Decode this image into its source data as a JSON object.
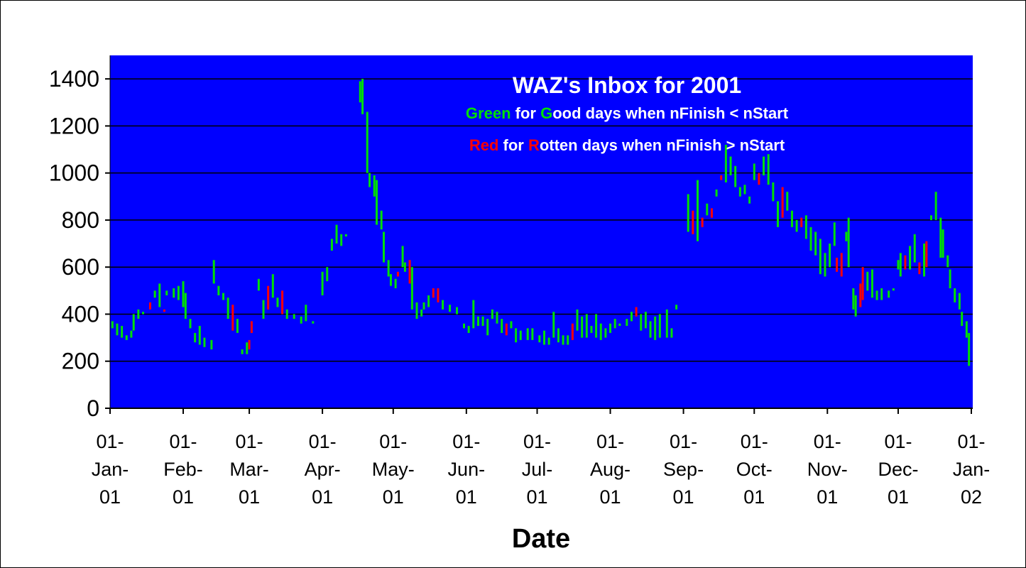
{
  "chart_data": {
    "type": "bar",
    "subtype": "high-low daily range",
    "title": "WAZ's Inbox for 2001",
    "subtitle_lines": [
      [
        {
          "t": "Green",
          "c": "G"
        },
        {
          "t": " for ",
          "c": "W"
        },
        {
          "t": "G",
          "c": "G"
        },
        {
          "t": "ood days when nFinish < nStart",
          "c": "W"
        }
      ],
      [
        {
          "t": "Red",
          "c": "R"
        },
        {
          "t": " for ",
          "c": "W"
        },
        {
          "t": "R",
          "c": "R"
        },
        {
          "t": "otten days when nFinish > nStart",
          "c": "W"
        }
      ]
    ],
    "xlabel": "Date",
    "ylabel": "",
    "ylim": [
      0,
      1500
    ],
    "yticks": [
      "0",
      "200",
      "400",
      "600",
      "800",
      "1000",
      "1200",
      "1400"
    ],
    "xlim": [
      "2001-01-01",
      "2002-01-01"
    ],
    "xticks": [
      {
        "date": "2001-01-01",
        "label": [
          "01-",
          "Jan-",
          "01"
        ]
      },
      {
        "date": "2001-02-01",
        "label": [
          "01-",
          "Feb-",
          "01"
        ]
      },
      {
        "date": "2001-03-01",
        "label": [
          "01-",
          "Mar-",
          "01"
        ]
      },
      {
        "date": "2001-04-01",
        "label": [
          "01-",
          "Apr-",
          "01"
        ]
      },
      {
        "date": "2001-05-01",
        "label": [
          "01-",
          "May-",
          "01"
        ]
      },
      {
        "date": "2001-06-01",
        "label": [
          "01-",
          "Jun-",
          "01"
        ]
      },
      {
        "date": "2001-07-01",
        "label": [
          "01-",
          "Jul-",
          "01"
        ]
      },
      {
        "date": "2001-08-01",
        "label": [
          "01-",
          "Aug-",
          "01"
        ]
      },
      {
        "date": "2001-09-01",
        "label": [
          "01-",
          "Sep-",
          "01"
        ]
      },
      {
        "date": "2001-10-01",
        "label": [
          "01-",
          "Oct-",
          "01"
        ]
      },
      {
        "date": "2001-11-01",
        "label": [
          "01-",
          "Nov-",
          "01"
        ]
      },
      {
        "date": "2001-12-01",
        "label": [
          "01-",
          "Dec-",
          "01"
        ]
      },
      {
        "date": "2002-01-01",
        "label": [
          "01-",
          "Jan-",
          "02"
        ]
      }
    ],
    "grid": true,
    "colors": {
      "G": "#00e000",
      "R": "#ff0000",
      "W": "#ffffff",
      "background": "#0000ff",
      "grid": "#000000"
    },
    "bars_format": [
      "date",
      "high",
      "low",
      "color"
    ],
    "bars": [
      [
        "2001-01-02",
        370,
        340,
        "G"
      ],
      [
        "2001-01-04",
        360,
        310,
        "G"
      ],
      [
        "2001-01-06",
        350,
        300,
        "G"
      ],
      [
        "2001-01-08",
        310,
        290,
        "G"
      ],
      [
        "2001-01-10",
        330,
        300,
        "G"
      ],
      [
        "2001-01-11",
        400,
        330,
        "G"
      ],
      [
        "2001-01-13",
        420,
        380,
        "G"
      ],
      [
        "2001-01-15",
        410,
        400,
        "G"
      ],
      [
        "2001-01-18",
        450,
        420,
        "R"
      ],
      [
        "2001-01-20",
        500,
        470,
        "G"
      ],
      [
        "2001-01-22",
        530,
        430,
        "G"
      ],
      [
        "2001-01-24",
        420,
        410,
        "R"
      ],
      [
        "2001-01-25",
        500,
        480,
        "G"
      ],
      [
        "2001-01-28",
        510,
        470,
        "G"
      ],
      [
        "2001-01-30",
        520,
        460,
        "G"
      ],
      [
        "2001-02-01",
        540,
        430,
        "G"
      ],
      [
        "2001-02-02",
        490,
        380,
        "G"
      ],
      [
        "2001-02-04",
        380,
        340,
        "G"
      ],
      [
        "2001-02-06",
        320,
        280,
        "G"
      ],
      [
        "2001-02-08",
        350,
        270,
        "G"
      ],
      [
        "2001-02-10",
        300,
        260,
        "G"
      ],
      [
        "2001-02-13",
        290,
        250,
        "G"
      ],
      [
        "2001-02-14",
        630,
        530,
        "G"
      ],
      [
        "2001-02-16",
        520,
        480,
        "G"
      ],
      [
        "2001-02-18",
        490,
        460,
        "G"
      ],
      [
        "2001-02-20",
        470,
        380,
        "G"
      ],
      [
        "2001-02-22",
        440,
        330,
        "R"
      ],
      [
        "2001-02-24",
        380,
        320,
        "G"
      ],
      [
        "2001-02-26",
        250,
        230,
        "G"
      ],
      [
        "2001-02-28",
        280,
        230,
        "G"
      ],
      [
        "2001-03-01",
        290,
        250,
        "R"
      ],
      [
        "2001-03-02",
        370,
        320,
        "R"
      ],
      [
        "2001-03-05",
        550,
        500,
        "G"
      ],
      [
        "2001-03-07",
        460,
        380,
        "G"
      ],
      [
        "2001-03-09",
        520,
        420,
        "R"
      ],
      [
        "2001-03-11",
        570,
        470,
        "G"
      ],
      [
        "2001-03-13",
        470,
        430,
        "G"
      ],
      [
        "2001-03-15",
        500,
        400,
        "R"
      ],
      [
        "2001-03-17",
        420,
        380,
        "G"
      ],
      [
        "2001-03-20",
        400,
        380,
        "G"
      ],
      [
        "2001-03-23",
        390,
        360,
        "G"
      ],
      [
        "2001-03-25",
        440,
        370,
        "G"
      ],
      [
        "2001-03-28",
        370,
        360,
        "G"
      ],
      [
        "2001-04-01",
        580,
        480,
        "G"
      ],
      [
        "2001-04-03",
        600,
        540,
        "G"
      ],
      [
        "2001-04-05",
        720,
        670,
        "G"
      ],
      [
        "2001-04-07",
        780,
        700,
        "G"
      ],
      [
        "2001-04-09",
        740,
        690,
        "G"
      ],
      [
        "2001-04-11",
        740,
        730,
        "G"
      ],
      [
        "2001-04-17",
        1390,
        1300,
        "G"
      ],
      [
        "2001-04-18",
        1400,
        1250,
        "G"
      ],
      [
        "2001-04-20",
        1260,
        1000,
        "G"
      ],
      [
        "2001-04-21",
        1000,
        940,
        "G"
      ],
      [
        "2001-04-23",
        990,
        900,
        "G"
      ],
      [
        "2001-04-24",
        970,
        780,
        "G"
      ],
      [
        "2001-04-26",
        840,
        760,
        "G"
      ],
      [
        "2001-04-27",
        750,
        620,
        "G"
      ],
      [
        "2001-04-29",
        630,
        560,
        "G"
      ],
      [
        "2001-04-30",
        570,
        520,
        "G"
      ],
      [
        "2001-05-02",
        550,
        510,
        "G"
      ],
      [
        "2001-05-03",
        580,
        560,
        "R"
      ],
      [
        "2001-05-05",
        690,
        600,
        "G"
      ],
      [
        "2001-05-06",
        620,
        580,
        "G"
      ],
      [
        "2001-05-08",
        630,
        530,
        "R"
      ],
      [
        "2001-05-09",
        600,
        420,
        "G"
      ],
      [
        "2001-05-11",
        450,
        380,
        "G"
      ],
      [
        "2001-05-13",
        420,
        390,
        "G"
      ],
      [
        "2001-05-14",
        450,
        420,
        "G"
      ],
      [
        "2001-05-16",
        480,
        430,
        "G"
      ],
      [
        "2001-05-18",
        510,
        470,
        "R"
      ],
      [
        "2001-05-20",
        510,
        450,
        "R"
      ],
      [
        "2001-05-22",
        460,
        420,
        "G"
      ],
      [
        "2001-05-25",
        440,
        410,
        "G"
      ],
      [
        "2001-05-28",
        430,
        400,
        "G"
      ],
      [
        "2001-05-31",
        360,
        340,
        "G"
      ],
      [
        "2001-06-02",
        350,
        320,
        "G"
      ],
      [
        "2001-06-04",
        460,
        340,
        "G"
      ],
      [
        "2001-06-06",
        390,
        350,
        "G"
      ],
      [
        "2001-06-08",
        390,
        350,
        "G"
      ],
      [
        "2001-06-10",
        380,
        310,
        "G"
      ],
      [
        "2001-06-12",
        420,
        380,
        "G"
      ],
      [
        "2001-06-14",
        410,
        360,
        "G"
      ],
      [
        "2001-06-16",
        380,
        320,
        "G"
      ],
      [
        "2001-06-18",
        360,
        310,
        "R"
      ],
      [
        "2001-06-20",
        370,
        340,
        "G"
      ],
      [
        "2001-06-22",
        340,
        280,
        "G"
      ],
      [
        "2001-06-24",
        330,
        290,
        "G"
      ],
      [
        "2001-06-27",
        340,
        290,
        "G"
      ],
      [
        "2001-06-29",
        340,
        290,
        "G"
      ],
      [
        "2001-07-02",
        310,
        280,
        "G"
      ],
      [
        "2001-07-04",
        330,
        270,
        "G"
      ],
      [
        "2001-07-06",
        300,
        270,
        "G"
      ],
      [
        "2001-07-08",
        410,
        300,
        "G"
      ],
      [
        "2001-07-10",
        340,
        280,
        "G"
      ],
      [
        "2001-07-12",
        310,
        270,
        "G"
      ],
      [
        "2001-07-14",
        310,
        270,
        "G"
      ],
      [
        "2001-07-16",
        360,
        290,
        "R"
      ],
      [
        "2001-07-18",
        420,
        330,
        "G"
      ],
      [
        "2001-07-20",
        390,
        300,
        "G"
      ],
      [
        "2001-07-22",
        400,
        300,
        "G"
      ],
      [
        "2001-07-24",
        350,
        320,
        "G"
      ],
      [
        "2001-07-26",
        400,
        300,
        "G"
      ],
      [
        "2001-07-28",
        360,
        290,
        "G"
      ],
      [
        "2001-07-30",
        340,
        300,
        "G"
      ],
      [
        "2001-08-01",
        360,
        320,
        "G"
      ],
      [
        "2001-08-03",
        380,
        340,
        "G"
      ],
      [
        "2001-08-05",
        360,
        350,
        "G"
      ],
      [
        "2001-08-08",
        380,
        350,
        "G"
      ],
      [
        "2001-08-10",
        410,
        370,
        "G"
      ],
      [
        "2001-08-12",
        430,
        390,
        "R"
      ],
      [
        "2001-08-14",
        400,
        330,
        "G"
      ],
      [
        "2001-08-16",
        410,
        340,
        "G"
      ],
      [
        "2001-08-18",
        370,
        300,
        "G"
      ],
      [
        "2001-08-20",
        390,
        290,
        "G"
      ],
      [
        "2001-08-22",
        400,
        300,
        "G"
      ],
      [
        "2001-08-25",
        420,
        300,
        "G"
      ],
      [
        "2001-08-27",
        340,
        300,
        "G"
      ],
      [
        "2001-08-29",
        440,
        420,
        "G"
      ],
      [
        "2001-09-03",
        910,
        750,
        "G"
      ],
      [
        "2001-09-05",
        840,
        740,
        "R"
      ],
      [
        "2001-09-07",
        970,
        710,
        "G"
      ],
      [
        "2001-09-09",
        810,
        770,
        "R"
      ],
      [
        "2001-09-11",
        870,
        820,
        "G"
      ],
      [
        "2001-09-13",
        850,
        810,
        "R"
      ],
      [
        "2001-09-15",
        930,
        900,
        "G"
      ],
      [
        "2001-09-17",
        990,
        970,
        "R"
      ],
      [
        "2001-09-19",
        1120,
        960,
        "G"
      ],
      [
        "2001-09-21",
        1070,
        990,
        "G"
      ],
      [
        "2001-09-23",
        1030,
        940,
        "G"
      ],
      [
        "2001-09-25",
        940,
        900,
        "G"
      ],
      [
        "2001-09-27",
        950,
        910,
        "G"
      ],
      [
        "2001-09-29",
        900,
        870,
        "G"
      ],
      [
        "2001-10-01",
        1040,
        970,
        "G"
      ],
      [
        "2001-10-03",
        1000,
        950,
        "R"
      ],
      [
        "2001-10-05",
        1070,
        990,
        "G"
      ],
      [
        "2001-10-07",
        1080,
        950,
        "G"
      ],
      [
        "2001-10-09",
        960,
        880,
        "G"
      ],
      [
        "2001-10-11",
        880,
        770,
        "G"
      ],
      [
        "2001-10-13",
        940,
        810,
        "R"
      ],
      [
        "2001-10-15",
        920,
        840,
        "G"
      ],
      [
        "2001-10-17",
        840,
        770,
        "G"
      ],
      [
        "2001-10-19",
        800,
        750,
        "G"
      ],
      [
        "2001-10-21",
        810,
        770,
        "R"
      ],
      [
        "2001-10-23",
        820,
        720,
        "G"
      ],
      [
        "2001-10-25",
        770,
        670,
        "G"
      ],
      [
        "2001-10-27",
        750,
        650,
        "G"
      ],
      [
        "2001-10-29",
        720,
        570,
        "G"
      ],
      [
        "2001-10-31",
        660,
        560,
        "G"
      ],
      [
        "2001-11-02",
        700,
        600,
        "G"
      ],
      [
        "2001-11-04",
        790,
        690,
        "G"
      ],
      [
        "2001-11-05",
        640,
        580,
        "R"
      ],
      [
        "2001-11-07",
        660,
        560,
        "R"
      ],
      [
        "2001-11-09",
        750,
        710,
        "G"
      ],
      [
        "2001-11-10",
        810,
        600,
        "G"
      ],
      [
        "2001-11-12",
        510,
        420,
        "G"
      ],
      [
        "2001-11-13",
        480,
        390,
        "G"
      ],
      [
        "2001-11-15",
        530,
        430,
        "R"
      ],
      [
        "2001-11-16",
        600,
        460,
        "R"
      ],
      [
        "2001-11-18",
        580,
        500,
        "G"
      ],
      [
        "2001-11-20",
        590,
        470,
        "G"
      ],
      [
        "2001-11-22",
        500,
        460,
        "G"
      ],
      [
        "2001-11-24",
        510,
        460,
        "G"
      ],
      [
        "2001-11-27",
        500,
        470,
        "G"
      ],
      [
        "2001-11-29",
        510,
        500,
        "G"
      ],
      [
        "2001-12-01",
        630,
        590,
        "G"
      ],
      [
        "2001-12-02",
        660,
        560,
        "G"
      ],
      [
        "2001-12-04",
        650,
        590,
        "R"
      ],
      [
        "2001-12-06",
        690,
        590,
        "G"
      ],
      [
        "2001-12-08",
        740,
        620,
        "G"
      ],
      [
        "2001-12-10",
        620,
        570,
        "R"
      ],
      [
        "2001-12-12",
        700,
        560,
        "G"
      ],
      [
        "2001-12-13",
        710,
        600,
        "R"
      ],
      [
        "2001-12-15",
        820,
        800,
        "G"
      ],
      [
        "2001-12-17",
        920,
        800,
        "G"
      ],
      [
        "2001-12-19",
        810,
        640,
        "G"
      ],
      [
        "2001-12-20",
        760,
        640,
        "G"
      ],
      [
        "2001-12-22",
        650,
        600,
        "G"
      ],
      [
        "2001-12-23",
        590,
        510,
        "G"
      ],
      [
        "2001-12-25",
        510,
        450,
        "G"
      ],
      [
        "2001-12-27",
        490,
        420,
        "G"
      ],
      [
        "2001-12-28",
        410,
        350,
        "G"
      ],
      [
        "2001-12-30",
        370,
        300,
        "G"
      ],
      [
        "2001-12-31",
        320,
        180,
        "G"
      ]
    ]
  }
}
